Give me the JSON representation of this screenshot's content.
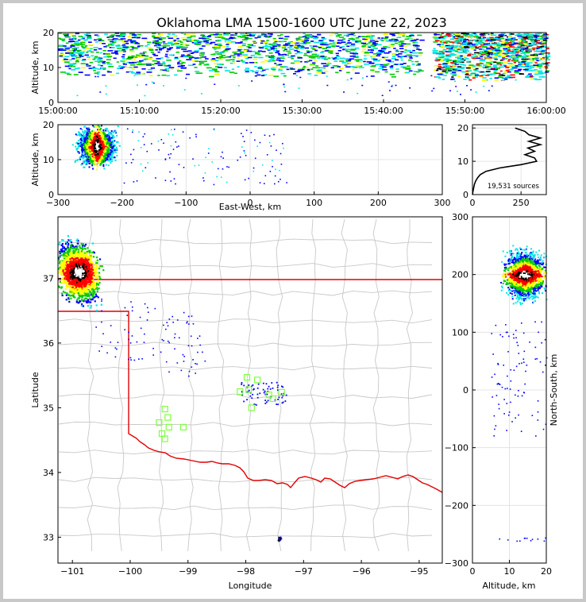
{
  "colors": {
    "frame_bg": "#c8c8c8",
    "state_border": "#e00000",
    "county_lines": "#c8c8c8",
    "station_marker": "#80ff40",
    "density_scale": [
      "#00e5e5",
      "#0000ff",
      "#00cc00",
      "#ffff00",
      "#ff0000",
      "#000000",
      "#ffffff"
    ]
  },
  "chart_data": [
    {
      "panel": "time-height",
      "type": "scatter",
      "title": "Oklahoma LMA 1500-1600 UTC June 22, 2023",
      "xlabel": "",
      "ylabel": "Altitude, km",
      "xlim": [
        "15:00:00",
        "16:00:00"
      ],
      "ylim": [
        0,
        20
      ],
      "xticks": [
        "15:00:00",
        "15:10:00",
        "15:20:00",
        "15:30:00",
        "15:40:00",
        "15:50:00",
        "16:00:00"
      ],
      "yticks": [
        "0",
        "10",
        "20"
      ],
      "data_gap": [
        "15:44:30",
        "15:45:30"
      ],
      "density_regions": [
        {
          "t": [
            "15:00:00",
            "15:44:30"
          ],
          "alt_km": [
            7.5,
            20
          ],
          "dominant_color": "cyan"
        },
        {
          "t": [
            "15:46:00",
            "16:00:00"
          ],
          "alt_km": [
            6.5,
            20
          ],
          "dominant_color": "red"
        }
      ]
    },
    {
      "panel": "east-west-altitude",
      "type": "scatter",
      "xlabel": "East-West, km",
      "ylabel": "Altitude, km",
      "xlim": [
        -300,
        300
      ],
      "ylim": [
        0,
        20
      ],
      "xticks": [
        "−300",
        "−200",
        "−100",
        "0",
        "100",
        "200",
        "300"
      ],
      "yticks": [
        "0",
        "10",
        "20"
      ],
      "density_regions": [
        {
          "x_km": [
            -300,
            -205
          ],
          "alt_km": [
            7,
            20
          ],
          "core_x_km": -240
        }
      ]
    },
    {
      "panel": "altitude-histogram",
      "type": "line",
      "xlim": [
        0,
        380
      ],
      "ylim": [
        0,
        21
      ],
      "xticks": [
        "0",
        "250"
      ],
      "yticks": [
        "0",
        "10",
        "20"
      ],
      "annotation": "19,531 sources",
      "profile": [
        {
          "count": 0,
          "alt_km": 0
        },
        {
          "count": 3,
          "alt_km": 1
        },
        {
          "count": 6,
          "alt_km": 2
        },
        {
          "count": 10,
          "alt_km": 3
        },
        {
          "count": 16,
          "alt_km": 4
        },
        {
          "count": 26,
          "alt_km": 5
        },
        {
          "count": 40,
          "alt_km": 6
        },
        {
          "count": 70,
          "alt_km": 7
        },
        {
          "count": 140,
          "alt_km": 8
        },
        {
          "count": 250,
          "alt_km": 9
        },
        {
          "count": 330,
          "alt_km": 10
        },
        {
          "count": 320,
          "alt_km": 11
        },
        {
          "count": 270,
          "alt_km": 12
        },
        {
          "count": 320,
          "alt_km": 13
        },
        {
          "count": 285,
          "alt_km": 14
        },
        {
          "count": 350,
          "alt_km": 15
        },
        {
          "count": 290,
          "alt_km": 16
        },
        {
          "count": 350,
          "alt_km": 17
        },
        {
          "count": 290,
          "alt_km": 18
        },
        {
          "count": 270,
          "alt_km": 19
        },
        {
          "count": 220,
          "alt_km": 20
        }
      ]
    },
    {
      "panel": "plan-view",
      "type": "scatter",
      "xlabel": "Longitude",
      "ylabel": "Latitude",
      "xlim": [
        -101.25,
        -94.6
      ],
      "ylim": [
        32.6,
        37.95
      ],
      "xticks": [
        "−101",
        "−100",
        "−99",
        "−98",
        "−97",
        "−96",
        "−95"
      ],
      "yticks": [
        "33",
        "34",
        "35",
        "36",
        "37"
      ],
      "stations": [
        {
          "lon": -99.4,
          "lat": 34.98
        },
        {
          "lon": -99.35,
          "lat": 34.85
        },
        {
          "lon": -99.5,
          "lat": 34.77
        },
        {
          "lon": -99.33,
          "lat": 34.7
        },
        {
          "lon": -99.45,
          "lat": 34.6
        },
        {
          "lon": -99.4,
          "lat": 34.52
        },
        {
          "lon": -99.08,
          "lat": 34.7
        },
        {
          "lon": -97.98,
          "lat": 35.47
        },
        {
          "lon": -97.8,
          "lat": 35.43
        },
        {
          "lon": -98.1,
          "lat": 35.25
        },
        {
          "lon": -97.95,
          "lat": 35.28
        },
        {
          "lon": -97.6,
          "lat": 35.2
        },
        {
          "lon": -97.53,
          "lat": 35.14
        },
        {
          "lon": -97.38,
          "lat": 35.24
        },
        {
          "lon": -97.9,
          "lat": 35.0
        }
      ],
      "density_regions": [
        {
          "lon": [
            -101.25,
            -100.4
          ],
          "lat": [
            36.3,
            37.7
          ],
          "core_lon": -100.9,
          "core_lat": 37.1
        },
        {
          "lon": [
            -97.5,
            -97.35
          ],
          "lat": [
            32.9,
            33.05
          ],
          "core_lon": -97.42,
          "core_lat": 32.98
        }
      ]
    },
    {
      "panel": "altitude-north-south",
      "type": "scatter",
      "xlabel": "Altitude, km",
      "ylabel": "North-South, km",
      "xlim": [
        0,
        20
      ],
      "ylim": [
        -300,
        300
      ],
      "xticks": [
        "0",
        "10",
        "20"
      ],
      "yticks": [
        "−300",
        "−200",
        "−100",
        "0",
        "100",
        "200",
        "300"
      ],
      "density_regions": [
        {
          "alt_km": [
            7,
            20
          ],
          "ns_km": [
            130,
            290
          ],
          "core_ns_km": 200
        }
      ]
    }
  ]
}
